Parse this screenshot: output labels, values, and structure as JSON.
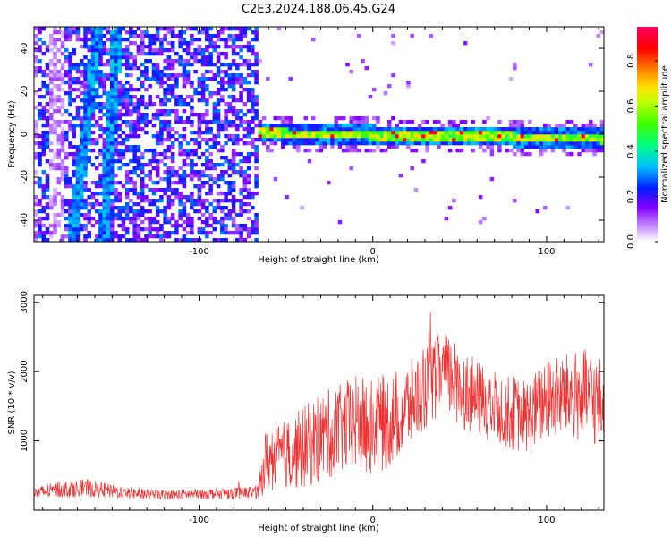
{
  "chart_data": [
    {
      "type": "heatmap",
      "title": "C2E3.2024.188.06.45.G24",
      "xlabel": "Height of straight line (km)",
      "ylabel": "Frequency (Hz)",
      "xlim": [
        -195,
        133
      ],
      "ylim": [
        -50,
        50
      ],
      "x_ticks": [
        -100,
        0,
        100
      ],
      "x_tick_labels": [
        "-100",
        "0",
        "100"
      ],
      "y_ticks": [
        -40,
        -20,
        0,
        20,
        40
      ],
      "y_tick_labels": [
        "-40",
        "-20",
        "0",
        "20",
        "40"
      ],
      "colorbar": {
        "label": "Normalized spectral amplitude",
        "range": [
          0,
          0.95
        ],
        "ticks": [
          0.0,
          0.2,
          0.4,
          0.6,
          0.8
        ],
        "tick_labels": [
          "0.0",
          "0.2",
          "0.4",
          "0.6",
          "0.8"
        ],
        "colormap": [
          "#ffffff",
          "#c080ff",
          "#8000ff",
          "#0020ff",
          "#00c0ff",
          "#00ff80",
          "#40ff00",
          "#c0ff00",
          "#ffe000",
          "#ff8000",
          "#ff0000",
          "#ff0060"
        ]
      },
      "features": {
        "noise_region_x": [
          -195,
          -65
        ],
        "noise_level": 0.3,
        "streaks": [
          {
            "x_at_top": -158,
            "x_at_bottom": -173
          },
          {
            "x_at_top": -147,
            "x_at_bottom": -155
          }
        ],
        "signal_line": {
          "x_start": -65,
          "x_end": 133,
          "freq_start": 0.5,
          "freq_end": -2.0,
          "peak_amplitude": 0.9
        }
      },
      "grid": false
    },
    {
      "type": "line",
      "title": "",
      "xlabel": "Height of straight line (km)",
      "ylabel": "SNR (10 * v/v)",
      "xlim": [
        -195,
        133
      ],
      "ylim": [
        0,
        3100
      ],
      "x_ticks": [
        -100,
        0,
        100
      ],
      "x_tick_labels": [
        "-100",
        "0",
        "100"
      ],
      "y_ticks": [
        1000,
        2000,
        3000
      ],
      "y_tick_labels": [
        "1000",
        "2000",
        "3000"
      ],
      "series": [
        {
          "color": "#ee3333",
          "x": [
            -195,
            -180,
            -165,
            -150,
            -135,
            -120,
            -105,
            -90,
            -75,
            -66,
            -62,
            -50,
            -40,
            -30,
            -20,
            -10,
            0,
            10,
            20,
            30,
            40,
            50,
            60,
            70,
            80,
            90,
            100,
            110,
            120,
            133
          ],
          "y_center": [
            240,
            300,
            320,
            270,
            240,
            220,
            230,
            240,
            250,
            260,
            700,
            800,
            900,
            1050,
            1150,
            1250,
            1200,
            1300,
            1500,
            1750,
            2000,
            1800,
            1600,
            1500,
            1400,
            1350,
            1600,
            1650,
            1650,
            1550
          ],
          "y_spread": [
            90,
            120,
            130,
            100,
            80,
            70,
            80,
            80,
            90,
            100,
            450,
            500,
            600,
            650,
            650,
            700,
            700,
            700,
            650,
            600,
            600,
            600,
            550,
            550,
            550,
            550,
            600,
            600,
            700,
            650
          ]
        }
      ],
      "grid": false
    }
  ]
}
